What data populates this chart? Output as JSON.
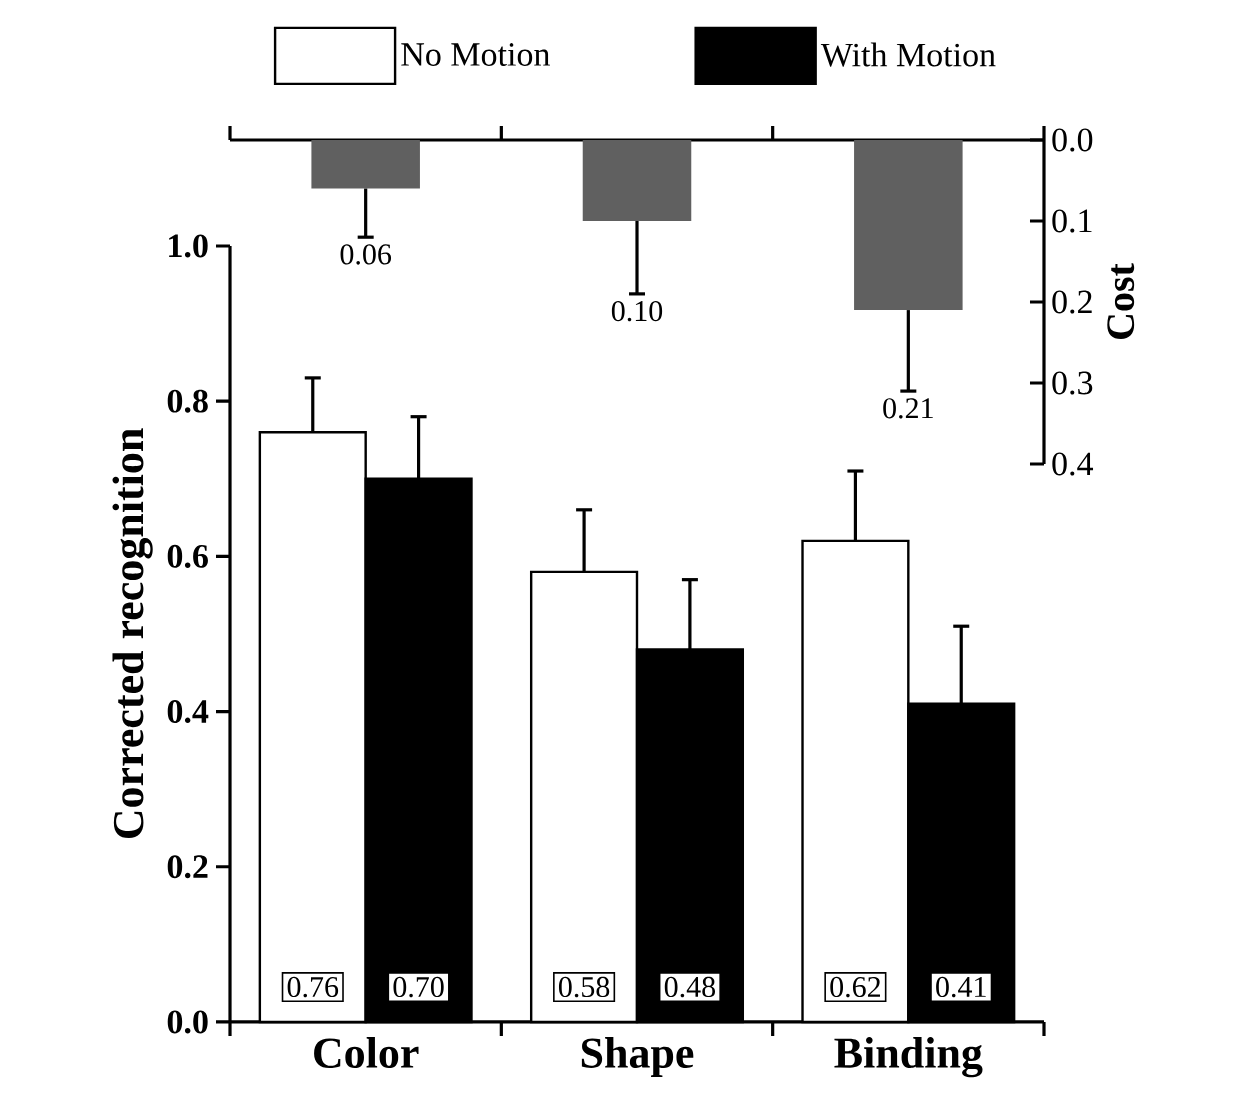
{
  "chart_data": [
    {
      "type": "bar",
      "categories": [
        null,
        null,
        null
      ],
      "values": [
        0.06,
        0.1,
        0.21
      ],
      "color": "#606060",
      "errors": [
        0.06,
        0.09,
        0.1
      ],
      "value_labels": [
        "0.06",
        "0.10",
        "0.21"
      ],
      "ylabel": "Cost",
      "ylim": [
        0.4,
        0.0
      ],
      "yticks": [
        {
          "value": 0,
          "label": "0.0"
        },
        {
          "value": 0.1,
          "label": "0.1"
        },
        {
          "value": 0.2,
          "label": "0.2"
        },
        {
          "value": 0.3,
          "label": "0.3"
        },
        {
          "value": 0.4,
          "label": "0.4"
        }
      ],
      "tick_labels": "y"
    },
    {
      "type": "bar",
      "categories": [
        "Color",
        "Shape",
        "Binding"
      ],
      "ylabel": "Corrected recognition",
      "series": [
        {
          "name": "No Motion",
          "color": "#ffffff",
          "values": [
            0.76,
            0.58,
            0.62
          ],
          "errors": [
            0.07,
            0.08,
            0.09
          ],
          "value_labels": [
            "0.76",
            "0.58",
            "0.62"
          ]
        },
        {
          "name": "With Motion",
          "color": "#000000",
          "values": [
            0.7,
            0.48,
            0.41
          ],
          "errors": [
            0.08,
            0.09,
            0.1
          ],
          "value_labels": [
            "0.70",
            "0.48",
            "0.41"
          ]
        }
      ],
      "ylim": [
        0,
        1.0
      ],
      "yticks": [
        {
          "value": 0,
          "label": "0.0"
        },
        {
          "value": 0.2,
          "label": "0.2"
        },
        {
          "value": 0.4,
          "label": "0.4"
        },
        {
          "value": 0.6,
          "label": "0.6"
        },
        {
          "value": 0.8,
          "label": "0.8"
        },
        {
          "value": 1.0,
          "label": "1.0"
        }
      ],
      "legend": "top"
    }
  ]
}
